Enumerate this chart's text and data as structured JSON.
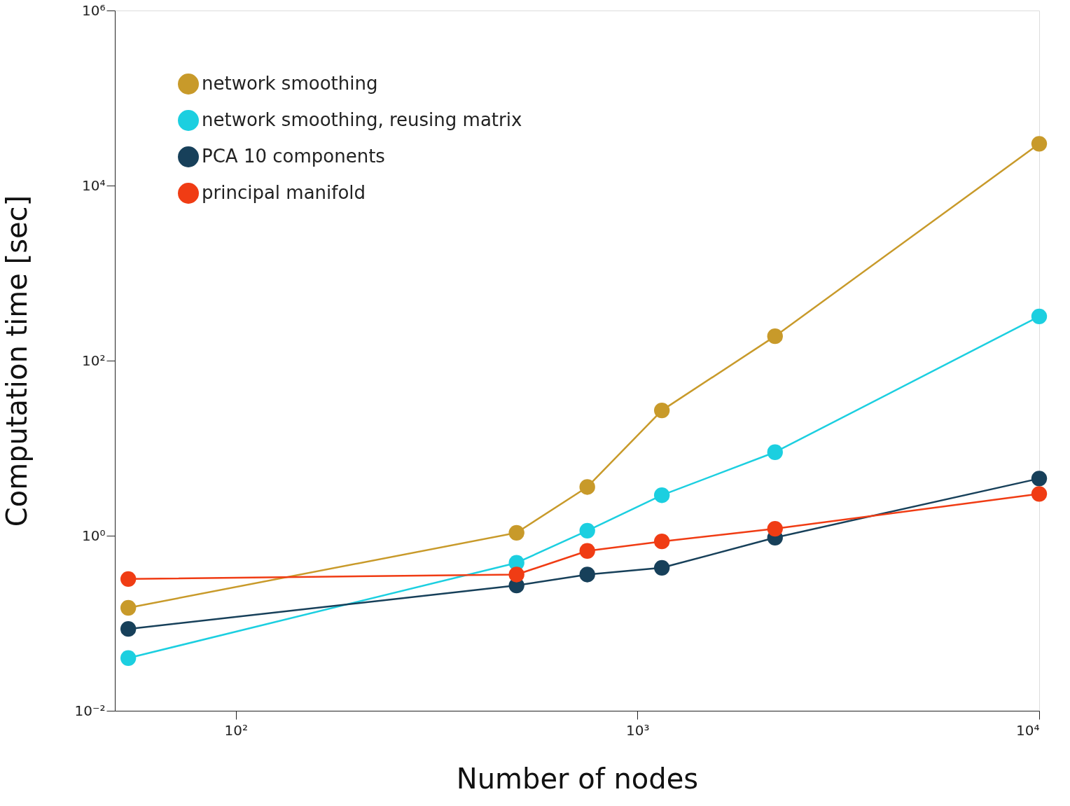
{
  "chart_data": {
    "type": "line",
    "xlabel": "Number of nodes",
    "ylabel": "Computation time [sec]",
    "log": "xy",
    "grid": false,
    "legend": "top left",
    "marker": "circle",
    "line_style": "solid",
    "xlim": [
      50,
      10000
    ],
    "ylim": [
      0.01,
      1000000
    ],
    "xticks": [
      {
        "value": 100,
        "label": "10²"
      },
      {
        "value": 1000,
        "label": "10³"
      },
      {
        "value": 10000,
        "label": "10⁴"
      }
    ],
    "yticks": [
      {
        "value": 0.01,
        "label": "10⁻²"
      },
      {
        "value": 1,
        "label": "10⁰"
      },
      {
        "value": 100,
        "label": "10²"
      },
      {
        "value": 10000,
        "label": "10⁴"
      },
      {
        "value": 1000000,
        "label": "10⁶"
      }
    ],
    "x": [
      54,
      500,
      750,
      1150,
      2200,
      10000
    ],
    "series": [
      {
        "name": "network smoothing",
        "color": "#c89a2a",
        "values": [
          0.15,
          1.08,
          3.6,
          27,
          190,
          30000
        ]
      },
      {
        "name": "network smoothing, reusing matrix",
        "color": "#1ccfe0",
        "values": [
          0.04,
          0.49,
          1.14,
          2.9,
          9,
          320
        ]
      },
      {
        "name": "PCA 10 components",
        "color": "#17405a",
        "values": [
          0.086,
          0.27,
          0.36,
          0.43,
          0.95,
          4.5
        ]
      },
      {
        "name": "principal manifold",
        "color": "#f03c14",
        "values": [
          0.32,
          0.36,
          0.67,
          0.86,
          1.2,
          3.0
        ]
      }
    ]
  }
}
